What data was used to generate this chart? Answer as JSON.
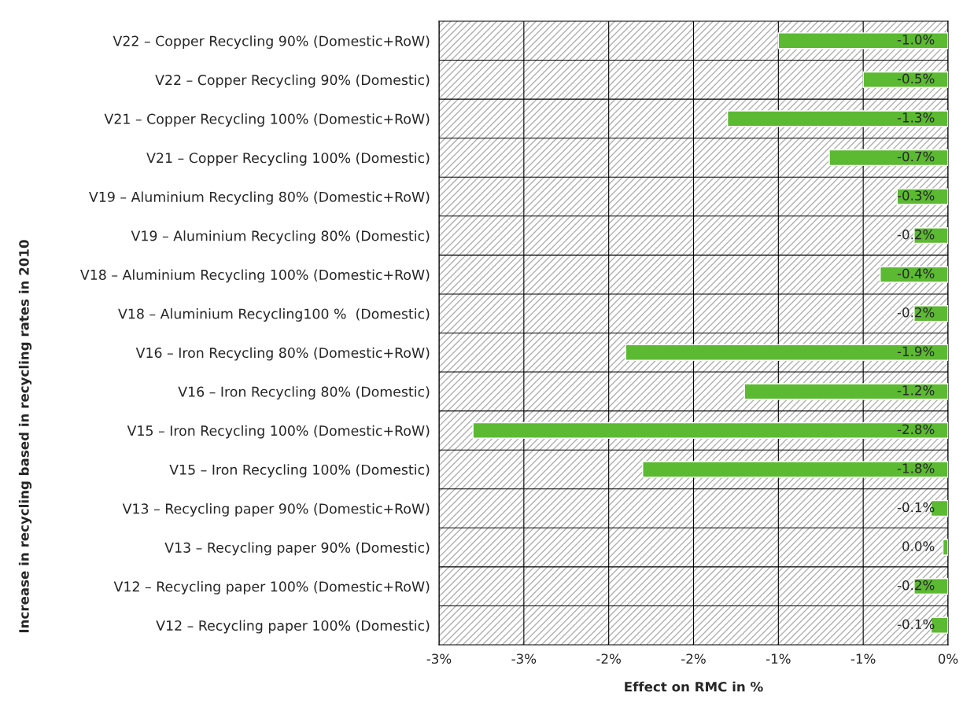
{
  "chart_data": {
    "type": "bar",
    "orientation": "horizontal",
    "xlabel": "Effect on RMC in %",
    "ylabel": "Increase in recycling based in recycling rates in 2010",
    "categories": [
      "V22 – Copper Recycling 90% (Domestic+RoW)",
      "V22 – Copper Recycling 90% (Domestic)",
      "V21 – Copper Recycling 100% (Domestic+RoW)",
      "V21 – Copper Recycling 100% (Domestic)",
      "V19 – Aluminium Recycling 80% (Domestic+RoW)",
      "V19 – Aluminium Recycling 80% (Domestic)",
      "V18 – Aluminium Recycling 100% (Domestic+RoW)",
      "V18 – Aluminium Recycling100 %  (Domestic)",
      "V16 – Iron Recycling 80% (Domestic+RoW)",
      "V16 – Iron Recycling 80% (Domestic)",
      "V15 – Iron Recycling 100% (Domestic+RoW)",
      "V15 – Iron Recycling 100% (Domestic)",
      "V13 – Recycling paper 90% (Domestic+RoW)",
      "V13 – Recycling paper 90% (Domestic)",
      "V12 – Recycling paper 100% (Domestic+RoW)",
      "V12 – Recycling paper 100% (Domestic)"
    ],
    "values": [
      -1.0,
      -0.5,
      -1.3,
      -0.7,
      -0.3,
      -0.2,
      -0.4,
      -0.2,
      -1.9,
      -1.2,
      -2.8,
      -1.8,
      -0.1,
      -0.03,
      -0.2,
      -0.1
    ],
    "value_labels": [
      "-1.0%",
      "-0.5%",
      "-1.3%",
      "-0.7%",
      "-0.3%",
      "-0.2%",
      "-0.4%",
      "-0.2%",
      "-1.9%",
      "-1.2%",
      "-2.8%",
      "-1.8%",
      "-0.1%",
      "0.0%",
      "-0.2%",
      "-0.1%"
    ],
    "color": "#5cb932",
    "xlim": [
      -3.0,
      0
    ],
    "xticks": [
      {
        "value": -3.0,
        "label": "-3%"
      },
      {
        "value": -2.5,
        "label": "-3%"
      },
      {
        "value": -2.0,
        "label": "-2%"
      },
      {
        "value": -1.5,
        "label": "-2%"
      },
      {
        "value": -1.0,
        "label": "-1%"
      },
      {
        "value": -0.5,
        "label": "-1%"
      },
      {
        "value": 0,
        "label": "0%"
      }
    ],
    "grid": true
  }
}
